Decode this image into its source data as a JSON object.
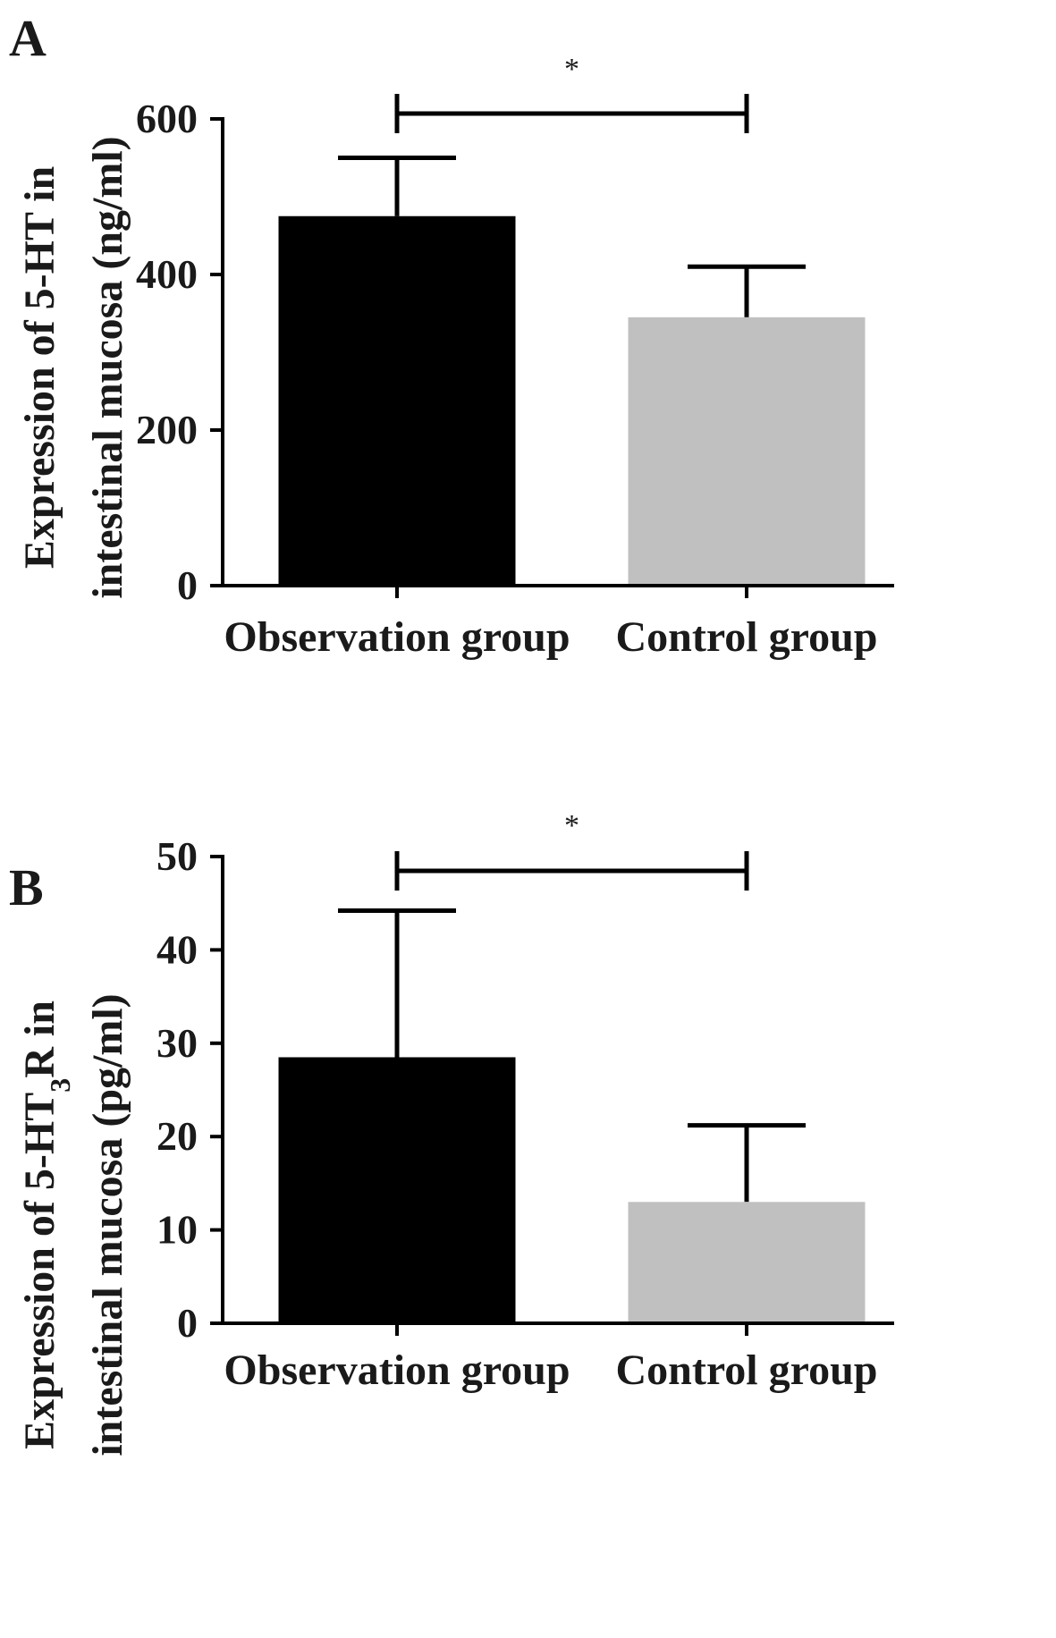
{
  "chart_data": [
    {
      "type": "bar",
      "panel": "A",
      "categories": [
        "Observation group",
        "Control group"
      ],
      "values": [
        475,
        345
      ],
      "error_upper": [
        550,
        410
      ],
      "ylabel_line1": "Expression of 5-HT in",
      "ylabel_line2": "intestinal mucosa (ng/ml)",
      "ylim": [
        0,
        600
      ],
      "yticks": [
        0,
        200,
        400,
        600
      ],
      "colors": [
        "#000000",
        "#c0c0c0"
      ],
      "significance": "*",
      "grid": false
    },
    {
      "type": "bar",
      "panel": "B",
      "categories": [
        "Observation group",
        "Control group"
      ],
      "values": [
        28.5,
        13
      ],
      "error_upper": [
        44.2,
        21.2
      ],
      "ylabel_line1_pre": "Expression of 5-HT",
      "ylabel_line1_sub": "3",
      "ylabel_line1_post": "R in",
      "ylabel_line2": "intestinal mucosa  (pg/ml)",
      "ylim": [
        0,
        50
      ],
      "yticks": [
        0,
        10,
        20,
        30,
        40,
        50
      ],
      "colors": [
        "#000000",
        "#c0c0c0"
      ],
      "significance": "*",
      "grid": false
    }
  ]
}
